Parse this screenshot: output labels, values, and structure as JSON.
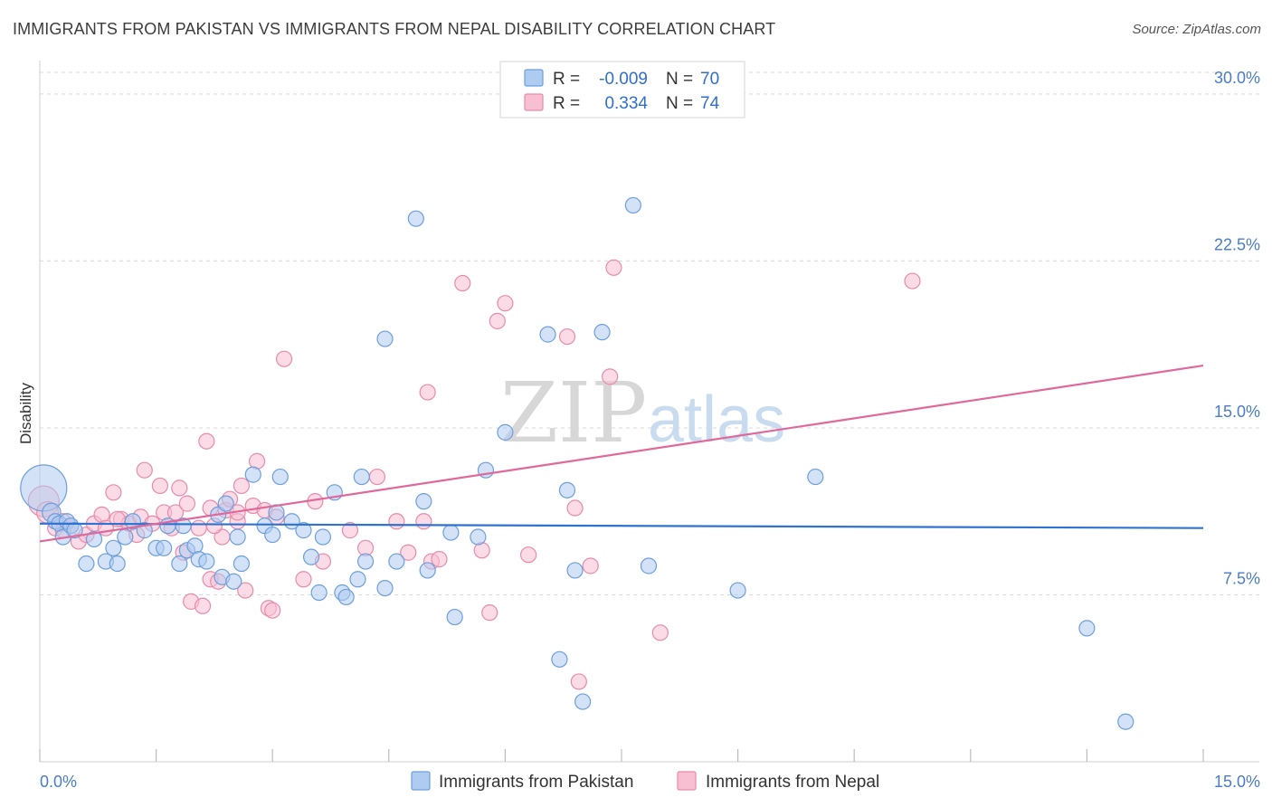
{
  "header": {
    "title": "IMMIGRANTS FROM PAKISTAN VS IMMIGRANTS FROM NEPAL DISABILITY CORRELATION CHART",
    "source": "Source: ZipAtlas.com"
  },
  "watermark": {
    "zip": "ZIP",
    "atlas": "atlas"
  },
  "colors": {
    "pakistan_fill": "#aecbf0",
    "pakistan_stroke": "#6c9fde",
    "pakistan_line": "#2f72d0",
    "nepal_fill": "#f7bfd1",
    "nepal_stroke": "#e98aab",
    "nepal_line": "#e0689a",
    "grid": "#d9d9d9",
    "tick_label": "#4a7cc7"
  },
  "legend_box": {
    "rows": [
      {
        "r_label": "R =",
        "r_value": "-0.009",
        "n_label": "N =",
        "n_value": "70"
      },
      {
        "r_label": "R =",
        "r_value": "0.334",
        "n_label": "N =",
        "n_value": "74"
      }
    ]
  },
  "chart_data": {
    "type": "scatter",
    "title": "IMMIGRANTS FROM PAKISTAN VS IMMIGRANTS FROM NEPAL DISABILITY CORRELATION CHART",
    "xlabel": "",
    "ylabel": "Disability",
    "xlim": [
      0,
      15
    ],
    "ylim": [
      0,
      31.5
    ],
    "x_tick_labels": [
      "0.0%",
      "15.0%"
    ],
    "y_ticks": [
      7.5,
      15.0,
      22.5,
      30.0
    ],
    "y_tick_labels": [
      "7.5%",
      "15.0%",
      "22.5%",
      "30.0%"
    ],
    "grid": true,
    "legend": "top-center",
    "series": [
      {
        "name": "Immigrants from Pakistan",
        "R": -0.009,
        "N": 70,
        "trend": {
          "x": [
            0,
            15
          ],
          "y": [
            10.7,
            10.5
          ]
        },
        "points": [
          [
            0.05,
            12.3,
            3.0
          ],
          [
            0.15,
            11.2,
            1.2
          ],
          [
            0.2,
            10.8,
            1.0
          ],
          [
            0.25,
            10.7,
            1.0
          ],
          [
            0.3,
            10.1,
            1.0
          ],
          [
            0.35,
            10.8,
            1.0
          ],
          [
            0.4,
            10.6,
            1.0
          ],
          [
            0.45,
            10.4,
            1.0
          ],
          [
            0.6,
            8.9,
            1.0
          ],
          [
            0.7,
            10.0,
            1.0
          ],
          [
            0.85,
            9.0,
            1.0
          ],
          [
            0.95,
            9.6,
            1.0
          ],
          [
            1.0,
            8.9,
            1.0
          ],
          [
            1.1,
            10.1,
            1.0
          ],
          [
            1.2,
            10.8,
            1.0
          ],
          [
            1.35,
            10.4,
            1.0
          ],
          [
            1.5,
            9.6,
            1.0
          ],
          [
            1.6,
            9.6,
            1.0
          ],
          [
            1.65,
            10.6,
            1.0
          ],
          [
            1.8,
            8.9,
            1.0
          ],
          [
            1.85,
            10.6,
            1.0
          ],
          [
            1.9,
            9.5,
            1.0
          ],
          [
            2.0,
            9.7,
            1.0
          ],
          [
            2.05,
            9.1,
            1.0
          ],
          [
            2.15,
            9.0,
            1.0
          ],
          [
            2.3,
            11.1,
            1.0
          ],
          [
            2.4,
            11.6,
            1.0
          ],
          [
            2.55,
            10.1,
            1.0
          ],
          [
            2.35,
            8.3,
            1.0
          ],
          [
            2.5,
            8.1,
            1.0
          ],
          [
            2.6,
            8.9,
            1.0
          ],
          [
            2.75,
            12.9,
            1.0
          ],
          [
            2.9,
            10.6,
            1.0
          ],
          [
            3.0,
            10.2,
            1.0
          ],
          [
            3.05,
            11.2,
            1.0
          ],
          [
            3.1,
            12.8,
            1.0
          ],
          [
            3.25,
            10.8,
            1.0
          ],
          [
            3.4,
            10.4,
            1.0
          ],
          [
            3.5,
            9.2,
            1.0
          ],
          [
            3.6,
            7.6,
            1.0
          ],
          [
            3.65,
            10.1,
            1.0
          ],
          [
            3.8,
            12.1,
            1.0
          ],
          [
            3.9,
            7.6,
            1.0
          ],
          [
            3.95,
            7.4,
            1.0
          ],
          [
            4.1,
            8.2,
            1.0
          ],
          [
            4.15,
            12.8,
            1.0
          ],
          [
            4.2,
            9.0,
            1.0
          ],
          [
            4.45,
            19.0,
            1.0
          ],
          [
            4.45,
            7.8,
            1.0
          ],
          [
            4.6,
            9.0,
            1.0
          ],
          [
            4.85,
            24.4,
            1.0
          ],
          [
            4.95,
            11.7,
            1.0
          ],
          [
            5.0,
            8.6,
            1.0
          ],
          [
            5.3,
            10.3,
            1.0
          ],
          [
            5.35,
            6.5,
            1.0
          ],
          [
            5.65,
            10.1,
            1.0
          ],
          [
            5.75,
            13.1,
            1.0
          ],
          [
            6.0,
            14.8,
            1.0
          ],
          [
            6.55,
            19.2,
            1.0
          ],
          [
            6.7,
            4.6,
            1.0
          ],
          [
            6.8,
            12.2,
            1.0
          ],
          [
            6.9,
            8.6,
            1.0
          ],
          [
            7.0,
            2.7,
            1.0
          ],
          [
            7.25,
            19.3,
            1.0
          ],
          [
            7.65,
            25.0,
            1.0
          ],
          [
            7.85,
            8.8,
            1.0
          ],
          [
            9.0,
            7.7,
            1.0
          ],
          [
            10.0,
            12.8,
            1.0
          ],
          [
            13.5,
            6.0,
            1.0
          ],
          [
            14.0,
            1.8,
            1.0
          ]
        ]
      },
      {
        "name": "Immigrants from Nepal",
        "R": 0.334,
        "N": 74,
        "trend": {
          "x": [
            0,
            15
          ],
          "y": [
            9.9,
            17.8
          ]
        },
        "points": [
          [
            0.05,
            11.7,
            2.0
          ],
          [
            0.1,
            11.2,
            1.4
          ],
          [
            0.2,
            10.5,
            1.0
          ],
          [
            0.3,
            10.8,
            1.0
          ],
          [
            0.4,
            10.6,
            1.0
          ],
          [
            0.5,
            9.9,
            1.0
          ],
          [
            0.6,
            10.2,
            1.0
          ],
          [
            0.7,
            10.7,
            1.0
          ],
          [
            0.8,
            11.1,
            1.0
          ],
          [
            0.85,
            10.5,
            1.0
          ],
          [
            0.95,
            12.1,
            1.0
          ],
          [
            1.05,
            10.9,
            1.0
          ],
          [
            1.15,
            10.7,
            1.0
          ],
          [
            1.25,
            10.2,
            1.0
          ],
          [
            1.3,
            11.0,
            1.0
          ],
          [
            1.35,
            13.1,
            1.0
          ],
          [
            1.45,
            10.7,
            1.0
          ],
          [
            1.55,
            12.4,
            1.0
          ],
          [
            1.6,
            11.2,
            1.0
          ],
          [
            1.7,
            10.5,
            1.0
          ],
          [
            1.75,
            11.2,
            1.0
          ],
          [
            1.8,
            12.3,
            1.0
          ],
          [
            1.85,
            9.4,
            1.0
          ],
          [
            1.9,
            11.6,
            1.0
          ],
          [
            1.95,
            7.2,
            1.0
          ],
          [
            2.05,
            10.5,
            1.0
          ],
          [
            2.1,
            7.0,
            1.0
          ],
          [
            2.15,
            14.4,
            1.0
          ],
          [
            2.2,
            8.2,
            1.0
          ],
          [
            2.2,
            11.4,
            1.0
          ],
          [
            2.3,
            8.1,
            1.0
          ],
          [
            2.35,
            10.1,
            1.0
          ],
          [
            2.4,
            11.3,
            1.0
          ],
          [
            2.45,
            11.8,
            1.0
          ],
          [
            2.55,
            10.8,
            1.0
          ],
          [
            2.55,
            11.2,
            1.0
          ],
          [
            2.6,
            12.4,
            1.0
          ],
          [
            2.65,
            7.7,
            1.0
          ],
          [
            2.75,
            11.5,
            1.0
          ],
          [
            2.8,
            13.5,
            1.0
          ],
          [
            2.9,
            11.3,
            1.0
          ],
          [
            2.95,
            6.9,
            1.0
          ],
          [
            3.0,
            6.8,
            1.0
          ],
          [
            3.05,
            11.0,
            1.0
          ],
          [
            3.15,
            18.1,
            1.0
          ],
          [
            3.4,
            8.2,
            1.0
          ],
          [
            3.55,
            11.7,
            1.0
          ],
          [
            3.65,
            9.0,
            1.0
          ],
          [
            4.0,
            10.4,
            1.0
          ],
          [
            4.2,
            9.6,
            1.0
          ],
          [
            4.35,
            12.8,
            1.0
          ],
          [
            4.6,
            10.8,
            1.0
          ],
          [
            4.75,
            9.4,
            1.0
          ],
          [
            4.95,
            10.8,
            1.0
          ],
          [
            5.0,
            16.6,
            1.0
          ],
          [
            5.05,
            9.0,
            1.0
          ],
          [
            5.15,
            9.1,
            1.0
          ],
          [
            5.45,
            21.5,
            1.0
          ],
          [
            5.7,
            9.5,
            1.0
          ],
          [
            5.8,
            6.7,
            1.0
          ],
          [
            5.9,
            19.8,
            1.0
          ],
          [
            6.0,
            20.6,
            1.0
          ],
          [
            6.3,
            9.3,
            1.0
          ],
          [
            6.8,
            19.1,
            1.0
          ],
          [
            6.9,
            11.4,
            1.0
          ],
          [
            6.95,
            3.6,
            1.0
          ],
          [
            7.1,
            8.8,
            1.0
          ],
          [
            7.35,
            17.3,
            1.0
          ],
          [
            7.4,
            22.2,
            1.0
          ],
          [
            8.0,
            5.8,
            1.0
          ],
          [
            11.25,
            21.6,
            1.0
          ],
          [
            0.3,
            10.4,
            1.0
          ],
          [
            1.0,
            10.9,
            1.0
          ],
          [
            2.25,
            10.6,
            1.0
          ]
        ]
      }
    ]
  }
}
